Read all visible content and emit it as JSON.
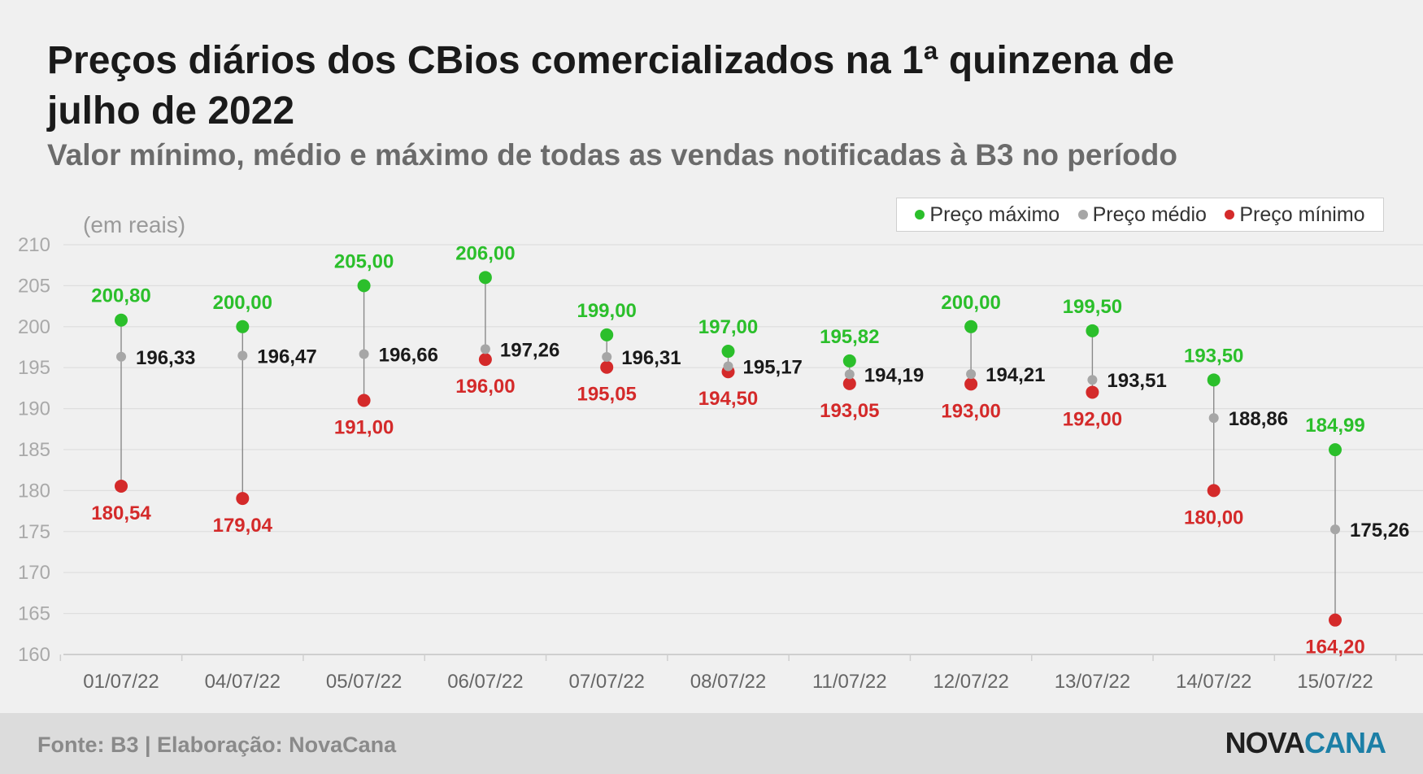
{
  "title": "Preços diários dos CBios comercializados na 1ª quinzena de julho de 2022",
  "subtitle": "Valor mínimo, médio e máximo de todas as vendas notificadas à B3 no período",
  "footer": {
    "source": "Fonte: B3 | Elaboração: NovaCana",
    "logo_part1": "NOVA",
    "logo_part2": "CANA"
  },
  "colors": {
    "max": "#2bbf2b",
    "avg": "#a6a6a6",
    "min": "#d42a2a",
    "max_label": "#2bbf2b",
    "avg_label": "#1a1a1a",
    "min_label": "#d42a2a"
  },
  "chart_data": {
    "type": "scatter",
    "ylabel": "(em reais)",
    "ylim": [
      160,
      210
    ],
    "yticks": [
      160,
      165,
      170,
      175,
      180,
      185,
      190,
      195,
      200,
      205,
      210
    ],
    "legend": {
      "placement": "top-right",
      "entries": [
        "Preço máximo",
        "Preço médio",
        "Preço mínimo"
      ]
    },
    "grid": true,
    "categories": [
      "01/07/22",
      "04/07/22",
      "05/07/22",
      "06/07/22",
      "07/07/22",
      "08/07/22",
      "11/07/22",
      "12/07/22",
      "13/07/22",
      "14/07/22",
      "15/07/22"
    ],
    "series": [
      {
        "name": "Preço máximo",
        "values": [
          200.8,
          200.0,
          205.0,
          206.0,
          199.0,
          197.0,
          195.82,
          200.0,
          199.5,
          193.5,
          184.99
        ],
        "labels": [
          "200,80",
          "200,00",
          "205,00",
          "206,00",
          "199,00",
          "197,00",
          "195,82",
          "200,00",
          "199,50",
          "193,50",
          "184,99"
        ]
      },
      {
        "name": "Preço médio",
        "values": [
          196.33,
          196.47,
          196.66,
          197.26,
          196.31,
          195.17,
          194.19,
          194.21,
          193.51,
          188.86,
          175.26
        ],
        "labels": [
          "196,33",
          "196,47",
          "196,66",
          "197,26",
          "196,31",
          "195,17",
          "194,19",
          "194,21",
          "193,51",
          "188,86",
          "175,26"
        ]
      },
      {
        "name": "Preço mínimo",
        "values": [
          180.54,
          179.04,
          191.0,
          196.0,
          195.05,
          194.5,
          193.05,
          193.0,
          192.0,
          180.0,
          164.2
        ],
        "labels": [
          "180,54",
          "179,04",
          "191,00",
          "196,00",
          "195,05",
          "194,50",
          "193,05",
          "193,00",
          "192,00",
          "180,00",
          "164,20"
        ]
      }
    ]
  }
}
